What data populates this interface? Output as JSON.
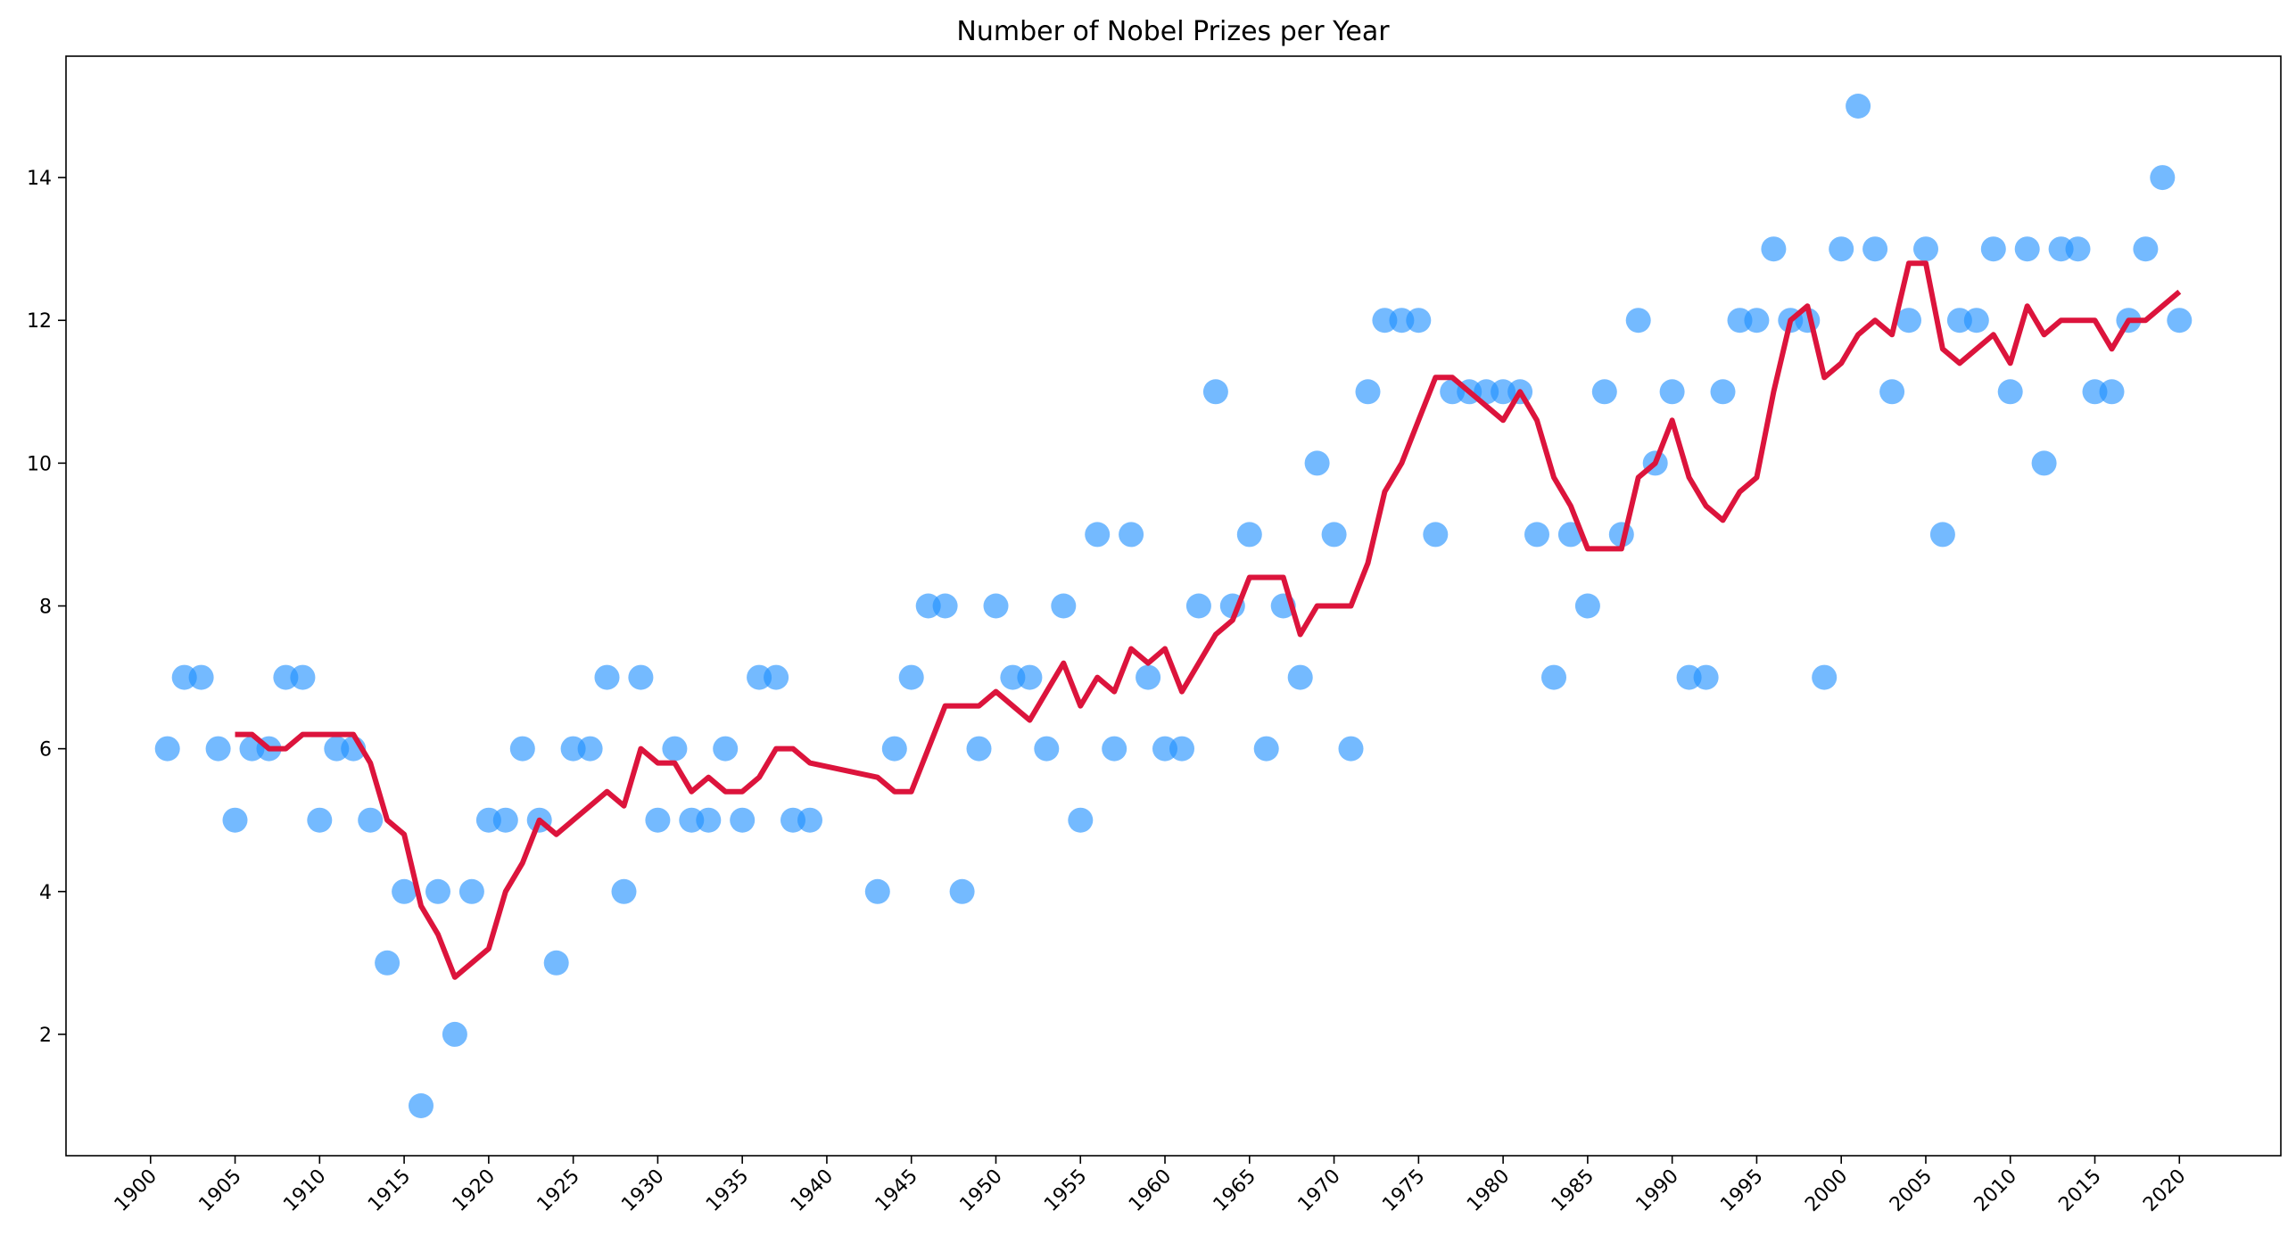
{
  "chart_data": {
    "type": "scatter",
    "title": "Number of Nobel Prizes per Year",
    "xlabel": "",
    "ylabel": "",
    "xlim": [
      1895,
      2026
    ],
    "ylim": [
      0.3,
      15.7
    ],
    "xticks": [
      1900,
      1905,
      1910,
      1915,
      1920,
      1925,
      1930,
      1935,
      1940,
      1945,
      1950,
      1955,
      1960,
      1965,
      1970,
      1975,
      1980,
      1985,
      1990,
      1995,
      2000,
      2005,
      2010,
      2015,
      2020
    ],
    "yticks": [
      2,
      4,
      6,
      8,
      10,
      12,
      14
    ],
    "grid": false,
    "legend": "none",
    "colors": {
      "scatter": "#1E90FF",
      "line": "#DC143C"
    },
    "series": [
      {
        "kind": "scatter",
        "x": [
          1901,
          1902,
          1903,
          1904,
          1905,
          1906,
          1907,
          1908,
          1909,
          1910,
          1911,
          1912,
          1913,
          1914,
          1915,
          1916,
          1917,
          1918,
          1919,
          1920,
          1921,
          1922,
          1923,
          1924,
          1925,
          1926,
          1927,
          1928,
          1929,
          1930,
          1931,
          1932,
          1933,
          1934,
          1935,
          1936,
          1937,
          1938,
          1939,
          1943,
          1944,
          1945,
          1946,
          1947,
          1948,
          1949,
          1950,
          1951,
          1952,
          1953,
          1954,
          1955,
          1956,
          1957,
          1958,
          1959,
          1960,
          1961,
          1962,
          1963,
          1964,
          1965,
          1966,
          1967,
          1968,
          1969,
          1970,
          1971,
          1972,
          1973,
          1974,
          1975,
          1976,
          1977,
          1978,
          1979,
          1980,
          1981,
          1982,
          1983,
          1984,
          1985,
          1986,
          1987,
          1988,
          1989,
          1990,
          1991,
          1992,
          1993,
          1994,
          1995,
          1996,
          1997,
          1998,
          1999,
          2000,
          2001,
          2002,
          2003,
          2004,
          2005,
          2006,
          2007,
          2008,
          2009,
          2010,
          2011,
          2012,
          2013,
          2014,
          2015,
          2016,
          2017,
          2018,
          2019,
          2020
        ],
        "y": [
          6,
          7,
          7,
          6,
          5,
          6,
          6,
          7,
          7,
          5,
          6,
          6,
          5,
          3,
          4,
          1,
          4,
          2,
          4,
          5,
          5,
          6,
          5,
          3,
          6,
          6,
          7,
          4,
          7,
          5,
          6,
          5,
          5,
          6,
          5,
          7,
          7,
          5,
          5,
          4,
          6,
          7,
          8,
          8,
          4,
          6,
          8,
          7,
          7,
          6,
          8,
          5,
          9,
          6,
          9,
          7,
          6,
          6,
          8,
          11,
          8,
          9,
          6,
          8,
          7,
          10,
          9,
          6,
          11,
          12,
          12,
          12,
          9,
          11,
          11,
          11,
          11,
          11,
          9,
          7,
          9,
          8,
          11,
          9,
          12,
          10,
          11,
          7,
          7,
          11,
          12,
          12,
          13,
          12,
          12,
          7,
          13,
          15,
          13,
          11,
          12,
          13,
          9,
          12,
          12,
          13,
          11,
          13,
          10,
          13,
          13,
          11,
          11,
          12,
          13,
          14,
          12
        ]
      },
      {
        "kind": "line",
        "x": [
          1905,
          1906,
          1907,
          1908,
          1909,
          1910,
          1911,
          1912,
          1913,
          1914,
          1915,
          1916,
          1917,
          1918,
          1919,
          1920,
          1921,
          1922,
          1923,
          1924,
          1925,
          1926,
          1927,
          1928,
          1929,
          1930,
          1931,
          1932,
          1933,
          1934,
          1935,
          1936,
          1937,
          1938,
          1939,
          1943,
          1944,
          1945,
          1946,
          1947,
          1948,
          1949,
          1950,
          1951,
          1952,
          1953,
          1954,
          1955,
          1956,
          1957,
          1958,
          1959,
          1960,
          1961,
          1962,
          1963,
          1964,
          1965,
          1966,
          1967,
          1968,
          1969,
          1970,
          1971,
          1972,
          1973,
          1974,
          1975,
          1976,
          1977,
          1978,
          1979,
          1980,
          1981,
          1982,
          1983,
          1984,
          1985,
          1986,
          1987,
          1988,
          1989,
          1990,
          1991,
          1992,
          1993,
          1994,
          1995,
          1996,
          1997,
          1998,
          1999,
          2000,
          2001,
          2002,
          2003,
          2004,
          2005,
          2006,
          2007,
          2008,
          2009,
          2010,
          2011,
          2012,
          2013,
          2014,
          2015,
          2016,
          2017,
          2018,
          2019,
          2020
        ],
        "y": [
          6.2,
          6.2,
          6,
          6,
          6.2,
          6.2,
          6.2,
          6.2,
          5.8,
          5,
          4.8,
          3.8,
          3.4,
          2.8,
          3,
          3.2,
          4,
          4.4,
          5,
          4.8,
          5,
          5.2,
          5.4,
          5.2,
          6,
          5.8,
          5.8,
          5.4,
          5.6,
          5.4,
          5.4,
          5.6,
          6,
          6,
          5.8,
          5.6,
          5.4,
          5.4,
          6,
          6.6,
          6.6,
          6.6,
          6.8,
          6.6,
          6.4,
          6.8,
          7.2,
          6.6,
          7,
          6.8,
          7.4,
          7.2,
          7.4,
          6.8,
          7.2,
          7.6,
          7.8,
          8.4,
          8.4,
          8.4,
          7.6,
          8,
          8,
          8,
          8.6,
          9.6,
          10,
          10.6,
          11.2,
          11.2,
          11,
          10.8,
          10.6,
          11,
          10.6,
          9.8,
          9.4,
          8.8,
          8.8,
          8.8,
          9.8,
          10,
          10.6,
          9.8,
          9.4,
          9.2,
          9.6,
          9.8,
          11,
          12,
          12.2,
          11.2,
          11.4,
          11.8,
          12,
          11.8,
          12.8,
          12.8,
          11.6,
          11.4,
          11.6,
          11.8,
          11.4,
          12.2,
          11.8,
          12,
          12,
          12,
          11.6,
          12,
          12,
          12.2,
          12.4
        ]
      }
    ]
  }
}
